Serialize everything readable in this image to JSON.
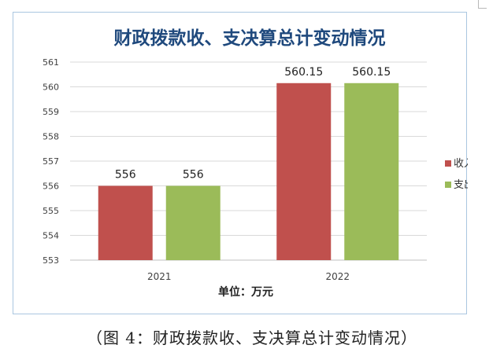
{
  "chart_data": {
    "type": "bar",
    "title": "财政拨款收、支决算总计变动情况",
    "categories": [
      "2021",
      "2022"
    ],
    "series": [
      {
        "name": "收入",
        "values": [
          556,
          560.15
        ],
        "color": "#c0504d"
      },
      {
        "name": "支出",
        "values": [
          556,
          560.15
        ],
        "color": "#9bbb59"
      }
    ],
    "data_labels": [
      [
        "556",
        "556"
      ],
      [
        "560.15",
        "560.15"
      ]
    ],
    "y_ticks": [
      "553",
      "554",
      "555",
      "556",
      "557",
      "558",
      "559",
      "560",
      "561"
    ],
    "ylim": [
      553,
      561
    ],
    "xlabel": "单位：万元",
    "ylabel": "",
    "grid": true,
    "legend_position": "right",
    "title_color": "#1f497d"
  },
  "caption": "（图 4：财政拨款收、支决算总计变动情况）"
}
